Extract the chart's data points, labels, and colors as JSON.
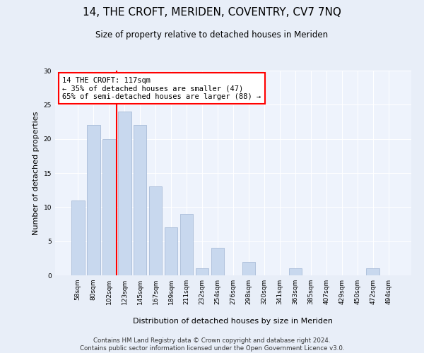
{
  "title": "14, THE CROFT, MERIDEN, COVENTRY, CV7 7NQ",
  "subtitle": "Size of property relative to detached houses in Meriden",
  "xlabel": "Distribution of detached houses by size in Meriden",
  "ylabel": "Number of detached properties",
  "categories": [
    "58sqm",
    "80sqm",
    "102sqm",
    "123sqm",
    "145sqm",
    "167sqm",
    "189sqm",
    "211sqm",
    "232sqm",
    "254sqm",
    "276sqm",
    "298sqm",
    "320sqm",
    "341sqm",
    "363sqm",
    "385sqm",
    "407sqm",
    "429sqm",
    "450sqm",
    "472sqm",
    "494sqm"
  ],
  "values": [
    11,
    22,
    20,
    24,
    22,
    13,
    7,
    9,
    1,
    4,
    0,
    2,
    0,
    0,
    1,
    0,
    0,
    0,
    0,
    1,
    0
  ],
  "bar_color": "#c8d8ee",
  "bar_edge_color": "#a8bcd8",
  "vline_x": 2.5,
  "vline_color": "red",
  "annotation_text": "14 THE CROFT: 117sqm\n← 35% of detached houses are smaller (47)\n65% of semi-detached houses are larger (88) →",
  "annotation_box_color": "white",
  "annotation_box_edge_color": "red",
  "ylim": [
    0,
    30
  ],
  "yticks": [
    0,
    5,
    10,
    15,
    20,
    25,
    30
  ],
  "footer": "Contains HM Land Registry data © Crown copyright and database right 2024.\nContains public sector information licensed under the Open Government Licence v3.0.",
  "bg_color": "#e8eef8",
  "plot_bg_color": "#eef3fc"
}
